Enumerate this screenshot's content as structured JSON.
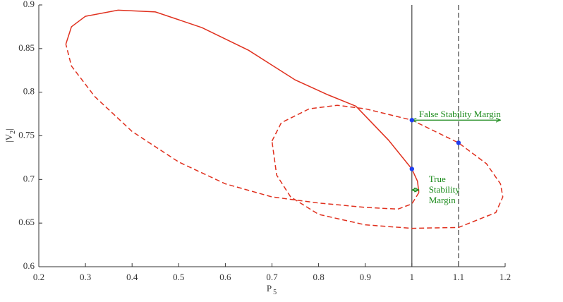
{
  "chart_data": {
    "type": "line",
    "xlabel": "P",
    "xlabel_sub": "5",
    "ylabel": "|V",
    "ylabel_sub": "2",
    "ylabel_end": "|",
    "xlim": [
      0.2,
      1.2
    ],
    "xticks": [
      0.2,
      0.3,
      0.4,
      0.5,
      0.6,
      0.7,
      0.8,
      0.9,
      1,
      1.1,
      1.2
    ],
    "ylim": [
      0.6,
      0.9
    ],
    "yticks": [
      0.6,
      0.65,
      0.7,
      0.75,
      0.8,
      0.85,
      0.9
    ],
    "series": [
      {
        "color": "#e0301e",
        "style": "solid",
        "x": [
          0.258,
          0.27,
          0.3,
          0.37,
          0.45,
          0.55,
          0.65,
          0.75,
          0.82,
          0.88,
          0.95,
          1.0,
          1.012,
          1.015
        ],
        "values": [
          0.855,
          0.875,
          0.887,
          0.894,
          0.892,
          0.874,
          0.848,
          0.814,
          0.797,
          0.784,
          0.745,
          0.712,
          0.698,
          0.685
        ]
      },
      {
        "color": "#e0301e",
        "style": "dashed",
        "x": [
          1.015,
          1.0,
          0.97,
          0.9,
          0.8,
          0.7,
          0.6,
          0.5,
          0.4,
          0.32,
          0.27,
          0.258
        ],
        "values": [
          0.685,
          0.672,
          0.666,
          0.668,
          0.673,
          0.68,
          0.695,
          0.72,
          0.755,
          0.795,
          0.83,
          0.855
        ]
      },
      {
        "color": "#e0301e",
        "style": "dashed",
        "x": [
          0.7,
          0.72,
          0.78,
          0.84,
          0.9,
          1.0,
          1.1,
          1.16,
          1.19,
          1.195,
          1.18,
          1.1,
          1.0,
          0.9,
          0.8,
          0.74,
          0.71,
          0.7
        ],
        "values": [
          0.744,
          0.765,
          0.781,
          0.785,
          0.781,
          0.768,
          0.742,
          0.718,
          0.695,
          0.68,
          0.662,
          0.645,
          0.644,
          0.648,
          0.66,
          0.68,
          0.705,
          0.744
        ]
      }
    ],
    "points": {
      "color": "#1f3ff0",
      "x": [
        1.0,
        1.0,
        1.1
      ],
      "values": [
        0.768,
        0.712,
        0.742
      ]
    },
    "vlines": [
      {
        "x": 1.0,
        "style": "solid",
        "color": "#444444"
      },
      {
        "x": 1.1,
        "style": "dashed",
        "color": "#444444"
      }
    ],
    "annotations": [
      {
        "lines": [
          "False Stability Margin"
        ],
        "color": "#1a8a1a",
        "x": [
          1.0,
          1.19
        ],
        "y": 0.768
      },
      {
        "lines": [
          "True",
          "Stability",
          "Margin"
        ],
        "color": "#1a8a1a",
        "x": [
          1.0,
          1.015
        ],
        "y": 0.688
      }
    ]
  }
}
